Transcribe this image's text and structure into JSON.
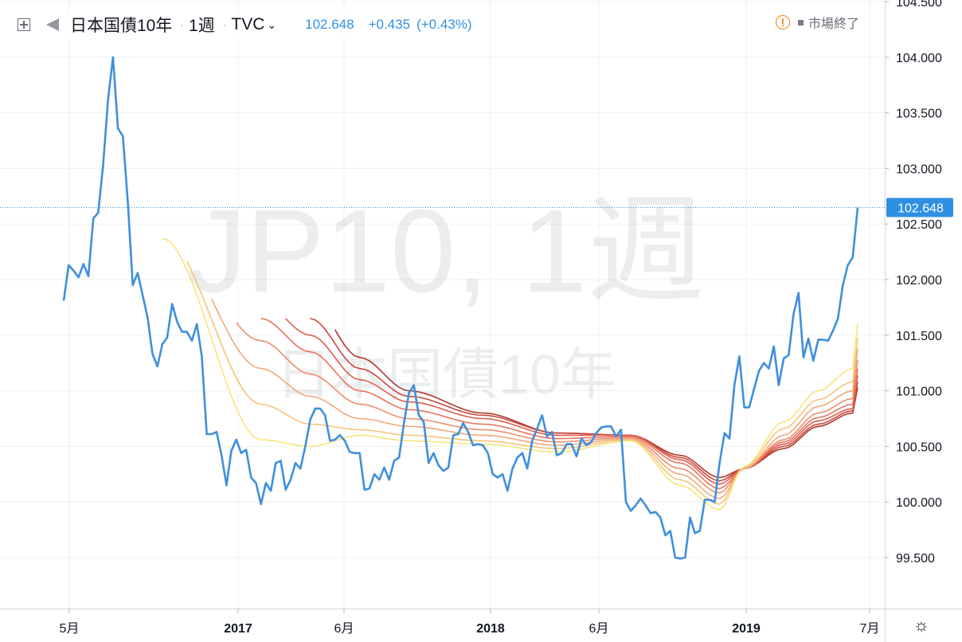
{
  "header": {
    "symbol_name": "日本国債10年",
    "interval": "1週",
    "exchange": "TVC",
    "price": "102.648",
    "change": "+0.435",
    "change_pct": "(+0.43%)",
    "market_status": "市場終了"
  },
  "watermark": {
    "line1": "JP10, 1週",
    "line2": "日本国債10年"
  },
  "colors": {
    "price_line": "#3f8fdc",
    "ribbon": [
      "#f8e47a",
      "#f6c479",
      "#f2a87a",
      "#ee8e6c",
      "#e77560",
      "#dc5e4f",
      "#c9483e",
      "#aa3a2f"
    ],
    "axis_text": "#131722",
    "grid": "#eef0f3"
  },
  "chart_data": {
    "type": "line",
    "x_ticks": [
      {
        "label": "5月",
        "bold": false
      },
      {
        "label": "2017",
        "bold": true
      },
      {
        "label": "6月",
        "bold": false
      },
      {
        "label": "2018",
        "bold": true
      },
      {
        "label": "6月",
        "bold": false
      },
      {
        "label": "2019",
        "bold": true
      },
      {
        "label": "7月",
        "bold": false
      }
    ],
    "y_ticks": [
      "104.500",
      "104.000",
      "103.500",
      "103.000",
      "102.500",
      "102.000",
      "101.500",
      "101.000",
      "100.500",
      "100.000",
      "99.500"
    ],
    "ylim": [
      98.9,
      104.5
    ],
    "last_price_label": "102.648",
    "last_price": 102.648,
    "series": [
      {
        "name": "日本国債10年",
        "x_start": "2016-05",
        "values": [
          101.81,
          102.13,
          102.08,
          102.02,
          102.14,
          102.03,
          102.55,
          102.6,
          103.03,
          103.62,
          104.0,
          103.36,
          103.29,
          102.7,
          101.95,
          102.06,
          101.86,
          101.66,
          101.33,
          101.22,
          101.42,
          101.48,
          101.78,
          101.62,
          101.53,
          101.53,
          101.45,
          101.6,
          101.31,
          100.61,
          100.61,
          100.63,
          100.42,
          100.15,
          100.46,
          100.56,
          100.44,
          100.47,
          100.22,
          100.17,
          99.98,
          100.17,
          100.1,
          100.35,
          100.37,
          100.11,
          100.2,
          100.35,
          100.3,
          100.5,
          100.74,
          100.84,
          100.84,
          100.78,
          100.55,
          100.56,
          100.6,
          100.55,
          100.45,
          100.44,
          100.44,
          100.11,
          100.12,
          100.25,
          100.2,
          100.31,
          100.2,
          100.37,
          100.4,
          100.71,
          100.98,
          101.05,
          100.78,
          100.72,
          100.35,
          100.44,
          100.33,
          100.28,
          100.31,
          100.6,
          100.61,
          100.71,
          100.63,
          100.51,
          100.52,
          100.51,
          100.44,
          100.25,
          100.22,
          100.25,
          100.1,
          100.3,
          100.4,
          100.44,
          100.3,
          100.55,
          100.66,
          100.78,
          100.59,
          100.63,
          100.42,
          100.44,
          100.52,
          100.52,
          100.41,
          100.57,
          100.51,
          100.54,
          100.62,
          100.67,
          100.68,
          100.68,
          100.59,
          100.65,
          100.0,
          99.92,
          99.97,
          100.03,
          99.97,
          99.9,
          99.91,
          99.86,
          99.7,
          99.74,
          99.5,
          99.49,
          99.5,
          99.86,
          99.72,
          99.74,
          100.02,
          100.02,
          100.0,
          100.35,
          100.62,
          100.57,
          101.05,
          101.31,
          100.85,
          100.85,
          101.02,
          101.18,
          101.25,
          101.2,
          101.4,
          101.05,
          101.29,
          101.32,
          101.69,
          101.88,
          101.3,
          101.47,
          101.27,
          101.46,
          101.46,
          101.45,
          101.54,
          101.65,
          101.95,
          102.13,
          102.2,
          102.648
        ]
      }
    ],
    "ribbon": {
      "start_indices": [
        20,
        25,
        30,
        35,
        40,
        45,
        50,
        55
      ],
      "end_values": [
        101.6,
        101.48,
        101.38,
        101.28,
        101.2,
        101.14,
        101.08,
        101.03
      ],
      "knots": [
        {
          "i": 20,
          "v": [
            102.37,
            102.4,
            102.45,
            102.5,
            102.55,
            102.6,
            102.65,
            102.7
          ]
        },
        {
          "i": 40,
          "v": [
            100.56,
            100.88,
            101.2,
            101.45,
            101.65,
            101.8,
            101.95,
            102.1
          ]
        },
        {
          "i": 50,
          "v": [
            100.5,
            100.7,
            100.95,
            101.15,
            101.35,
            101.5,
            101.65,
            101.8
          ]
        },
        {
          "i": 60,
          "v": [
            100.6,
            100.65,
            100.75,
            100.88,
            101.0,
            101.1,
            101.2,
            101.3
          ]
        },
        {
          "i": 70,
          "v": [
            100.55,
            100.6,
            100.68,
            100.75,
            100.83,
            100.9,
            100.95,
            101.0
          ]
        },
        {
          "i": 85,
          "v": [
            100.52,
            100.55,
            100.6,
            100.65,
            100.7,
            100.75,
            100.78,
            100.8
          ]
        },
        {
          "i": 100,
          "v": [
            100.45,
            100.48,
            100.51,
            100.54,
            100.57,
            100.6,
            100.62,
            100.62
          ]
        },
        {
          "i": 115,
          "v": [
            100.55,
            100.56,
            100.57,
            100.58,
            100.59,
            100.6,
            100.6,
            100.6
          ]
        },
        {
          "i": 125,
          "v": [
            100.15,
            100.2,
            100.25,
            100.3,
            100.35,
            100.38,
            100.4,
            100.42
          ]
        },
        {
          "i": 133,
          "v": [
            99.93,
            99.98,
            100.03,
            100.08,
            100.12,
            100.16,
            100.19,
            100.22
          ]
        },
        {
          "i": 138,
          "v": [
            100.32,
            100.31,
            100.3,
            100.3,
            100.3,
            100.3,
            100.3,
            100.3
          ]
        },
        {
          "i": 146,
          "v": [
            100.72,
            100.66,
            100.6,
            100.56,
            100.54,
            100.52,
            100.5,
            100.48
          ]
        },
        {
          "i": 153,
          "v": [
            101.0,
            100.92,
            100.86,
            100.8,
            100.76,
            100.73,
            100.7,
            100.68
          ]
        },
        {
          "i": 160,
          "v": [
            101.2,
            101.08,
            101.0,
            100.93,
            100.88,
            100.84,
            100.82,
            100.8
          ]
        }
      ]
    }
  }
}
